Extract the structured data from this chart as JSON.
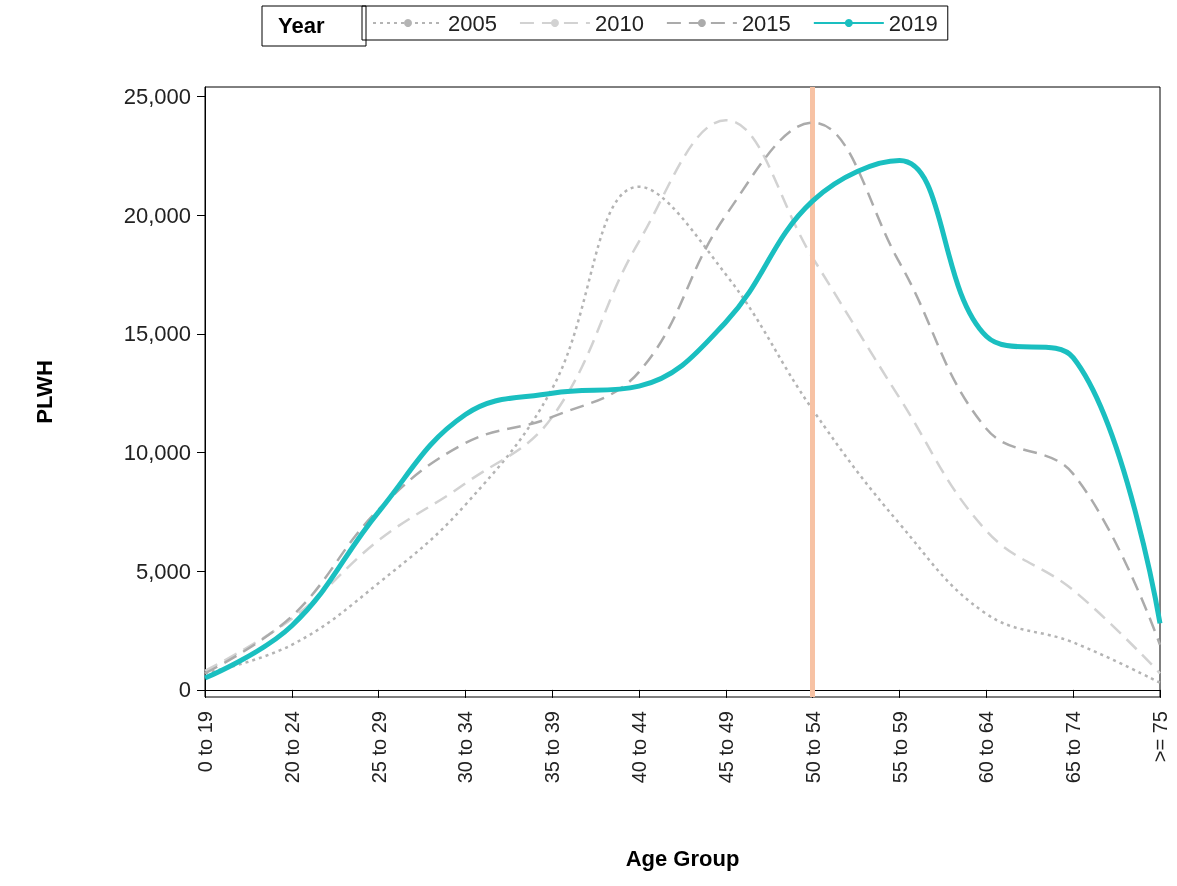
{
  "chart_data": {
    "type": "line",
    "xlabel": "Age Group",
    "ylabel": "PLWH",
    "legend_title": "Year",
    "categories": [
      "0 to 19",
      "20 to 24",
      "25 to 29",
      "30 to 34",
      "35 to 39",
      "40 to 44",
      "45 to 49",
      "50 to 54",
      "55 to 59",
      "60 to 64",
      "65 to 74",
      ">= 75"
    ],
    "series": [
      {
        "name": "2005",
        "color": "#b4b4b4",
        "line_style": "dotted",
        "values": [
          700,
          1900,
          4500,
          7800,
          12700,
          21200,
          17500,
          11800,
          7000,
          3200,
          2000,
          300
        ]
      },
      {
        "name": "2010",
        "color": "#d2d2d2",
        "line_style": "dashed",
        "values": [
          800,
          3000,
          6300,
          8700,
          11500,
          18900,
          24000,
          18200,
          12300,
          6700,
          4200,
          700
        ]
      },
      {
        "name": "2015",
        "color": "#ababab",
        "line_style": "dashed",
        "values": [
          700,
          3100,
          7600,
          10400,
          11500,
          13400,
          20000,
          23900,
          18000,
          11000,
          9100,
          1900
        ]
      },
      {
        "name": "2019",
        "color": "#1abfc0",
        "line_style": "solid",
        "values": [
          500,
          2700,
          7500,
          11600,
          12500,
          12800,
          15500,
          20600,
          22300,
          14900,
          14000,
          2800
        ]
      }
    ],
    "ylim": [
      -300,
      25400
    ],
    "yticks": [
      {
        "value": 0,
        "label": "0"
      },
      {
        "value": 5000,
        "label": "5,000"
      },
      {
        "value": 10000,
        "label": "10,000"
      },
      {
        "value": 15000,
        "label": "15,000"
      },
      {
        "value": 20000,
        "label": "20,000"
      },
      {
        "value": 25000,
        "label": "25,000"
      }
    ],
    "ref_lines": [
      {
        "axis": "x",
        "value": "50 to 54",
        "color": "#f7c2a4"
      }
    ],
    "grid": false,
    "legend": "top",
    "marker": "none"
  }
}
